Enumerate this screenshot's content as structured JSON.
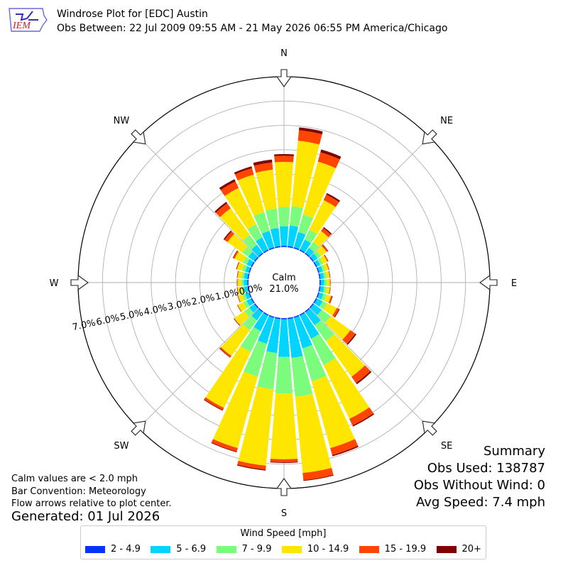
{
  "header": {
    "logo_text": "IEM",
    "title_line1": "Windrose Plot for [EDC] Austin",
    "title_line2": "Obs Between: 22 Jul 2009 09:55 AM - 21 May 2026 06:55 PM America/Chicago"
  },
  "summary": {
    "heading": "Summary",
    "obs_used": "Obs Used: 138787",
    "obs_without_wind": "Obs Without Wind: 0",
    "avg_speed": "Avg Speed: 7.4 mph"
  },
  "notes": {
    "calm": "Calm values are < 2.0 mph",
    "convention": "Bar Convention: Meteorology",
    "arrows": "Flow arrows relative to plot center.",
    "generated": "Generated: 01 Jul 2026"
  },
  "legend": {
    "title": "Wind Speed [mph]",
    "items": [
      {
        "label": "2 - 4.9",
        "color": "#0433ff"
      },
      {
        "label": "5 - 6.9",
        "color": "#00d4ff"
      },
      {
        "label": "7 - 9.9",
        "color": "#7cfc7c"
      },
      {
        "label": "10 - 14.9",
        "color": "#ffe600"
      },
      {
        "label": "15 - 19.9",
        "color": "#ff4500"
      },
      {
        "label": "20+",
        "color": "#800000"
      }
    ]
  },
  "chart_data": {
    "type": "windrose",
    "calm_label": "Calm",
    "calm_pct_label": "21.0%",
    "calm_pct": 21.0,
    "radial_unit": "percent of observations",
    "radial_ticks": [
      "0.0%",
      "1.0%",
      "2.0%",
      "3.0%",
      "4.0%",
      "5.0%",
      "6.0%",
      "7.0%"
    ],
    "radial_max": 7.0,
    "compass_labels": [
      "N",
      "NE",
      "E",
      "SE",
      "S",
      "SW",
      "W",
      "NW"
    ],
    "bin_labels": [
      "2 - 4.9",
      "5 - 6.9",
      "7 - 9.9",
      "10 - 14.9",
      "15 - 19.9",
      "20+"
    ],
    "directions_deg": [
      0,
      10,
      20,
      30,
      40,
      50,
      60,
      70,
      80,
      90,
      100,
      110,
      120,
      130,
      140,
      150,
      160,
      170,
      180,
      190,
      200,
      210,
      220,
      230,
      240,
      250,
      260,
      270,
      280,
      290,
      300,
      310,
      320,
      330,
      340,
      350
    ],
    "cumulative_pct": [
      [
        0.05,
        0.85,
        1.65,
        3.5,
        3.75,
        3.82
      ],
      [
        0.05,
        0.9,
        1.7,
        4.4,
        4.83,
        4.95
      ],
      [
        0.05,
        0.7,
        1.45,
        3.7,
        4.1,
        4.22
      ],
      [
        0.05,
        0.5,
        0.95,
        2.3,
        2.55,
        2.62
      ],
      [
        0.05,
        0.3,
        0.6,
        1.15,
        1.3,
        1.35
      ],
      [
        0.05,
        0.25,
        0.42,
        0.7,
        0.76,
        0.78
      ],
      [
        0.05,
        0.2,
        0.33,
        0.52,
        0.56,
        0.57
      ],
      [
        0.05,
        0.2,
        0.3,
        0.45,
        0.47,
        0.48
      ],
      [
        0.05,
        0.2,
        0.3,
        0.43,
        0.45,
        0.46
      ],
      [
        0.05,
        0.2,
        0.3,
        0.43,
        0.45,
        0.46
      ],
      [
        0.05,
        0.2,
        0.3,
        0.44,
        0.46,
        0.47
      ],
      [
        0.05,
        0.22,
        0.35,
        0.55,
        0.6,
        0.62
      ],
      [
        0.05,
        0.3,
        0.5,
        0.95,
        1.05,
        1.08
      ],
      [
        0.05,
        0.45,
        0.9,
        1.9,
        2.15,
        2.2
      ],
      [
        0.05,
        0.7,
        1.5,
        3.3,
        3.62,
        3.68
      ],
      [
        0.05,
        1.1,
        2.3,
        4.75,
        5.05,
        5.1
      ],
      [
        0.05,
        1.35,
        2.75,
        5.6,
        5.9,
        5.95
      ],
      [
        0.05,
        1.65,
        3.25,
        6.4,
        6.7,
        6.73
      ],
      [
        0.05,
        1.6,
        3.1,
        5.8,
        5.92,
        5.95
      ],
      [
        0.05,
        1.45,
        2.95,
        6.1,
        6.26,
        6.3
      ],
      [
        0.05,
        1.15,
        2.55,
        5.6,
        5.75,
        5.78
      ],
      [
        0.05,
        0.75,
        1.7,
        4.25,
        4.35,
        4.38
      ],
      [
        0.05,
        0.45,
        0.95,
        2.25,
        2.32,
        2.34
      ],
      [
        0.05,
        0.3,
        0.55,
        1.05,
        1.08,
        1.09
      ],
      [
        0.05,
        0.25,
        0.4,
        0.65,
        0.67,
        0.68
      ],
      [
        0.05,
        0.2,
        0.32,
        0.5,
        0.52,
        0.53
      ],
      [
        0.05,
        0.2,
        0.3,
        0.46,
        0.48,
        0.49
      ],
      [
        0.05,
        0.2,
        0.3,
        0.45,
        0.47,
        0.48
      ],
      [
        0.05,
        0.2,
        0.3,
        0.46,
        0.48,
        0.49
      ],
      [
        0.05,
        0.2,
        0.33,
        0.55,
        0.58,
        0.59
      ],
      [
        0.05,
        0.25,
        0.42,
        0.8,
        0.86,
        0.88
      ],
      [
        0.05,
        0.35,
        0.65,
        1.4,
        1.55,
        1.6
      ],
      [
        0.05,
        0.45,
        0.95,
        2.3,
        2.55,
        2.62
      ],
      [
        0.05,
        0.6,
        1.2,
        2.85,
        3.15,
        3.25
      ],
      [
        0.05,
        0.75,
        1.55,
        3.15,
        3.42,
        3.5
      ],
      [
        0.05,
        0.8,
        1.6,
        3.2,
        3.5,
        3.62
      ]
    ]
  }
}
